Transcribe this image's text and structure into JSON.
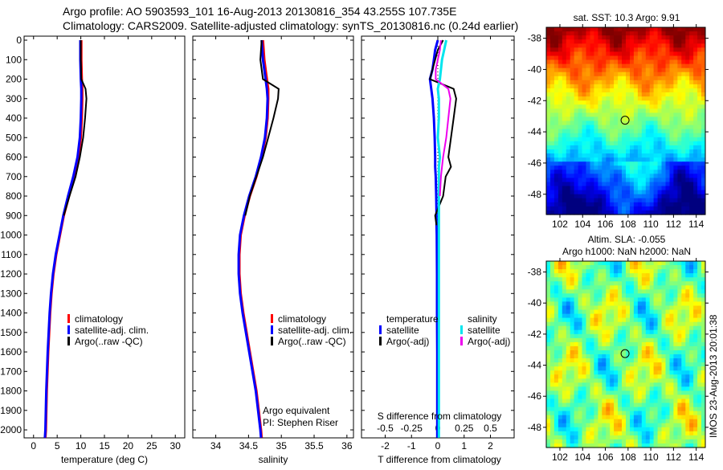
{
  "title_line1": "Argo profile: AO 5903593_101 16-Aug-2013 20130816_354 43.255S 107.735E",
  "title_line2": "Climatology: CARS2009. Satellite-adjusted climatology: synTS_20130816.nc (0.24d earlier)",
  "colors": {
    "climatology": "#ff0000",
    "satellite": "#0000ff",
    "argo": "#000000",
    "sal_satellite": "#00e5ee",
    "sal_argo": "#ee00ee"
  },
  "chart_data": [
    {
      "type": "line",
      "name": "temperature-profile",
      "xlabel": "temperature (deg C)",
      "xlim": [
        -2,
        32
      ],
      "ylim": [
        2050,
        0
      ],
      "xticks": [
        "0",
        "5",
        "10",
        "15",
        "20",
        "25",
        "30"
      ],
      "xtick_values": [
        0,
        5,
        10,
        15,
        20,
        25,
        30
      ],
      "yticks": [
        "0",
        "100",
        "200",
        "300",
        "400",
        "500",
        "600",
        "700",
        "800",
        "900",
        "1000",
        "1100",
        "1200",
        "1300",
        "1400",
        "1500",
        "1600",
        "1700",
        "1800",
        "1900",
        "2000"
      ],
      "ytick_values": [
        0,
        100,
        200,
        300,
        400,
        500,
        600,
        700,
        800,
        900,
        1000,
        1100,
        1200,
        1300,
        1400,
        1500,
        1600,
        1700,
        1800,
        1900,
        2000
      ],
      "legend": [
        "climatology",
        "satellite-adj. clim.",
        "Argo(..raw -QC)"
      ],
      "depth": [
        0,
        100,
        200,
        250,
        300,
        400,
        500,
        600,
        700,
        800,
        900,
        1000,
        1100,
        1200,
        1300,
        1400,
        1600,
        1800,
        2000,
        2040
      ],
      "series": [
        {
          "name": "climatology",
          "values": [
            10.1,
            10.1,
            10.2,
            10.3,
            10.3,
            10.2,
            10.0,
            9.5,
            8.6,
            7.5,
            6.4,
            5.6,
            4.8,
            4.2,
            3.8,
            3.5,
            3.1,
            2.8,
            2.6,
            2.5
          ]
        },
        {
          "name": "satellite-adj. clim.",
          "values": [
            9.9,
            9.9,
            10.0,
            10.1,
            10.1,
            10.0,
            9.8,
            9.3,
            8.4,
            7.3,
            6.3,
            5.5,
            4.7,
            4.1,
            3.7,
            3.4,
            3.0,
            2.7,
            2.5,
            2.4
          ]
        },
        {
          "name": "Argo(..raw -QC)",
          "values": [
            10.0,
            10.0,
            10.1,
            11.0,
            11.2,
            10.9,
            10.5,
            9.8,
            8.9,
            7.6,
            6.4,
            null,
            null,
            null,
            null,
            null,
            null,
            null,
            null,
            null
          ]
        }
      ]
    },
    {
      "type": "line",
      "name": "salinity-profile",
      "xlabel": "salinity",
      "xlim": [
        33.65,
        36.1
      ],
      "ylim": [
        2050,
        0
      ],
      "xticks": [
        "34",
        "34.5",
        "35",
        "35.5",
        "36"
      ],
      "xtick_values": [
        34,
        34.5,
        35,
        35.5,
        36
      ],
      "legend": [
        "climatology",
        "satellite-adj. clim.",
        "Argo(..raw -QC)"
      ],
      "annotation": [
        "Argo equivalent",
        "PI: Stephen Riser"
      ],
      "depth": [
        0,
        100,
        200,
        250,
        300,
        400,
        500,
        600,
        700,
        800,
        900,
        1000,
        1100,
        1200,
        1300,
        1400,
        1600,
        1800,
        2000,
        2040
      ],
      "series": [
        {
          "name": "climatology",
          "values": [
            34.72,
            34.74,
            34.78,
            34.8,
            34.8,
            34.79,
            34.76,
            34.7,
            34.62,
            34.52,
            34.44,
            34.38,
            34.36,
            34.36,
            34.38,
            34.42,
            34.52,
            34.62,
            34.69,
            34.7
          ]
        },
        {
          "name": "satellite-adj. clim.",
          "values": [
            34.7,
            34.72,
            34.76,
            34.78,
            34.79,
            34.78,
            34.75,
            34.69,
            34.61,
            34.51,
            34.43,
            34.37,
            34.35,
            34.35,
            34.37,
            34.41,
            34.51,
            34.61,
            34.68,
            34.69
          ]
        },
        {
          "name": "Argo(..raw -QC)",
          "values": [
            34.7,
            34.68,
            34.72,
            34.96,
            34.95,
            34.88,
            34.8,
            34.72,
            34.62,
            34.52,
            34.45,
            null,
            null,
            null,
            null,
            null,
            null,
            null,
            null,
            null
          ]
        }
      ]
    },
    {
      "type": "line",
      "name": "difference-profile",
      "xlabel": "T difference from climatology",
      "xlabel_top": "S difference from climatology",
      "xlim": [
        -2.9,
        2.9
      ],
      "xticks": [
        "-2",
        "-1",
        "0",
        "1",
        "2"
      ],
      "xtick_values": [
        -2,
        -1,
        0,
        1,
        2
      ],
      "sticks": [
        "-0.5",
        "-0.25",
        "0",
        "0.25",
        "0.5"
      ],
      "stick_values": [
        -0.5,
        -0.25,
        0,
        0.25,
        0.5
      ],
      "legend_temperature": {
        "title": "temperature",
        "items": [
          "satellite",
          "Argo(-adj)"
        ]
      },
      "legend_salinity": {
        "title": "salinity",
        "items": [
          "satellite",
          "Argo(-adj)"
        ]
      },
      "depth": [
        0,
        50,
        100,
        150,
        200,
        250,
        300,
        400,
        500,
        600,
        650,
        700,
        800,
        900,
        950,
        1000,
        1200,
        1400,
        1600,
        1800,
        2000,
        2040
      ],
      "series": [
        {
          "name": "T satellite",
          "values": [
            0.0,
            -0.1,
            -0.15,
            -0.2,
            -0.3,
            -0.25,
            -0.2,
            -0.15,
            -0.12,
            -0.1,
            -0.1,
            -0.08,
            -0.06,
            -0.05,
            -0.05,
            -0.04,
            -0.03,
            -0.03,
            -0.02,
            -0.02,
            -0.02,
            -0.02
          ]
        },
        {
          "name": "T Argo(-adj)",
          "values": [
            0.2,
            0.0,
            -0.1,
            -0.2,
            -0.3,
            0.6,
            0.7,
            0.6,
            0.5,
            0.4,
            0.5,
            0.3,
            0.2,
            -0.1,
            -0.05,
            null,
            null,
            null,
            null,
            null,
            null,
            null
          ]
        },
        {
          "name": "S satellite",
          "values": [
            0.08,
            0.06,
            0.04,
            0.03,
            0.02,
            0.0,
            0.01,
            0.01,
            0.0,
            0.02,
            0.01,
            0.01,
            0.01,
            0.01,
            0.01,
            0.01,
            0.01,
            0.01,
            0.01,
            0.01,
            0.01,
            0.01
          ]
        },
        {
          "name": "S Argo(-adj)",
          "values": [
            0.03,
            0.02,
            0.0,
            -0.02,
            -0.02,
            0.1,
            0.12,
            0.1,
            0.08,
            0.05,
            0.04,
            0.03,
            0.02,
            null,
            null,
            null,
            null,
            null,
            null,
            null,
            null,
            null
          ]
        }
      ]
    },
    {
      "type": "heatmap",
      "name": "sst-map",
      "title": "sat. SST: 10.3 Argo: 9.91",
      "xticks": [
        "102",
        "104",
        "106",
        "108",
        "110",
        "112",
        "114"
      ],
      "xtick_values": [
        102,
        104,
        106,
        108,
        110,
        112,
        114
      ],
      "yticks": [
        "-38",
        "-40",
        "-42",
        "-44",
        "-46",
        "-48"
      ],
      "ytick_values": [
        -38,
        -40,
        -42,
        -44,
        -46,
        -48
      ],
      "xlim": [
        100.8,
        114.8
      ],
      "ylim": [
        -49.3,
        -37.3
      ],
      "marker": {
        "lon": 107.735,
        "lat": -43.255
      }
    },
    {
      "type": "heatmap",
      "name": "sla-map",
      "title_line1": "Altim. SLA: -0.055",
      "title_line2": "Argo h1000: NaN h2000: NaN",
      "xticks": [
        "102",
        "104",
        "106",
        "108",
        "110",
        "112",
        "114"
      ],
      "xtick_values": [
        102,
        104,
        106,
        108,
        110,
        112,
        114
      ],
      "yticks": [
        "-38",
        "-40",
        "-42",
        "-44",
        "-46",
        "-48"
      ],
      "ytick_values": [
        -38,
        -40,
        -42,
        -44,
        -46,
        -48
      ],
      "xlim": [
        100.8,
        114.8
      ],
      "ylim": [
        -49.3,
        -37.3
      ],
      "marker": {
        "lon": 107.735,
        "lat": -43.255
      }
    }
  ],
  "credit": "IMOS 23-Aug-2013 20:01:38"
}
